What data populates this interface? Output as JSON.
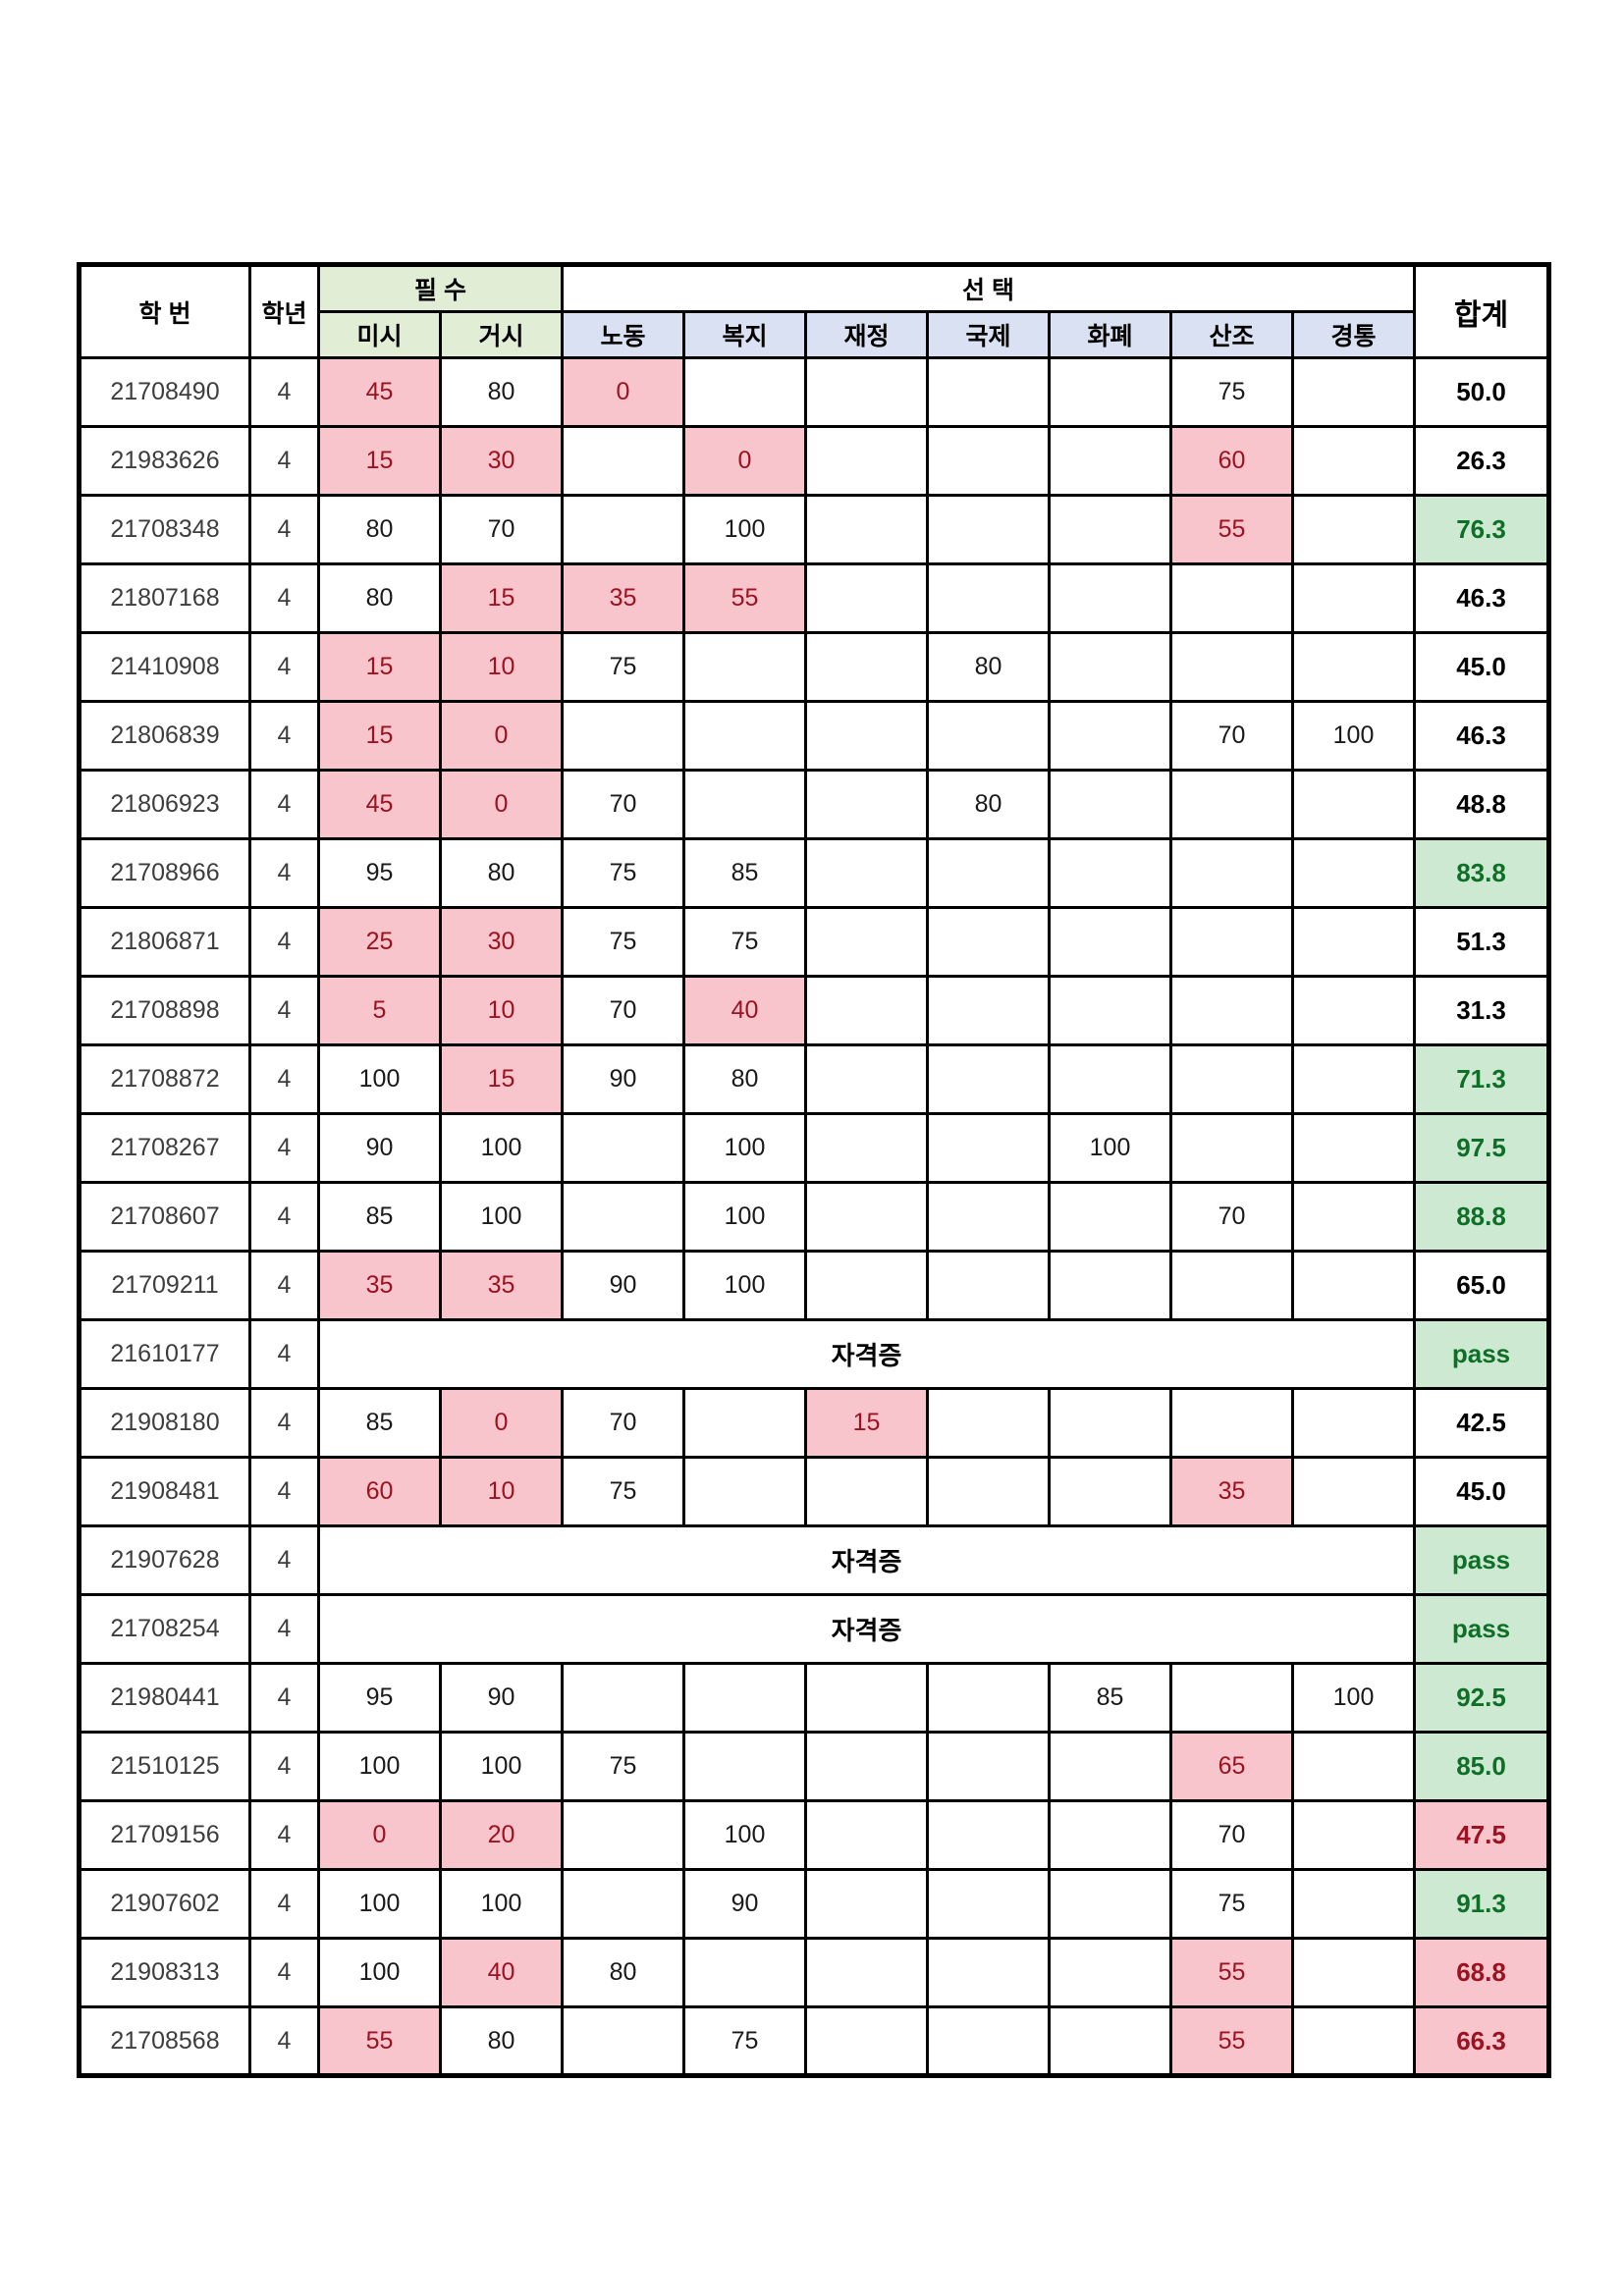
{
  "table": {
    "header": {
      "student_id": "학  번",
      "year": "학년",
      "required_group": "필  수",
      "elective_group": "선  택",
      "total": "합계",
      "required_cols": [
        "미시",
        "거시"
      ],
      "elective_cols": [
        "노동",
        "복지",
        "재정",
        "국제",
        "화폐",
        "산조",
        "경통"
      ]
    },
    "colors": {
      "required_header_bg": "#e2edd5",
      "elective_sub_bg": "#d9e1f2",
      "fail_bg": "#f8c5cc",
      "fail_text": "#9c1220",
      "good_bg": "#cde9d2",
      "good_text": "#0e6f27",
      "border": "#000000"
    },
    "merged_label": "자격증",
    "score_col_keys": [
      "misi",
      "geosi",
      "nodong",
      "bokji",
      "jaejeong",
      "gukje",
      "hwapye",
      "sanjo",
      "gyeongtong"
    ],
    "rows": [
      {
        "id": "21708490",
        "year": "4",
        "scores": [
          [
            "45",
            "p"
          ],
          [
            "80",
            ""
          ],
          [
            "0",
            "p"
          ],
          [
            "",
            ""
          ],
          [
            "",
            ""
          ],
          [
            "",
            ""
          ],
          [
            "",
            ""
          ],
          [
            "75",
            ""
          ],
          [
            "",
            ""
          ]
        ],
        "total": [
          "50.0",
          "plain"
        ]
      },
      {
        "id": "21983626",
        "year": "4",
        "scores": [
          [
            "15",
            "p"
          ],
          [
            "30",
            "p"
          ],
          [
            "",
            ""
          ],
          [
            "0",
            "p"
          ],
          [
            "",
            ""
          ],
          [
            "",
            ""
          ],
          [
            "",
            ""
          ],
          [
            "60",
            "p"
          ],
          [
            "",
            ""
          ]
        ],
        "total": [
          "26.3",
          "plain"
        ]
      },
      {
        "id": "21708348",
        "year": "4",
        "scores": [
          [
            "80",
            ""
          ],
          [
            "70",
            ""
          ],
          [
            "",
            ""
          ],
          [
            "100",
            ""
          ],
          [
            "",
            ""
          ],
          [
            "",
            ""
          ],
          [
            "",
            ""
          ],
          [
            "55",
            "p"
          ],
          [
            "",
            ""
          ]
        ],
        "total": [
          "76.3",
          "good"
        ]
      },
      {
        "id": "21807168",
        "year": "4",
        "scores": [
          [
            "80",
            ""
          ],
          [
            "15",
            "p"
          ],
          [
            "35",
            "p"
          ],
          [
            "55",
            "p"
          ],
          [
            "",
            ""
          ],
          [
            "",
            ""
          ],
          [
            "",
            ""
          ],
          [
            "",
            ""
          ],
          [
            "",
            ""
          ]
        ],
        "total": [
          "46.3",
          "plain"
        ]
      },
      {
        "id": "21410908",
        "year": "4",
        "scores": [
          [
            "15",
            "p"
          ],
          [
            "10",
            "p"
          ],
          [
            "75",
            ""
          ],
          [
            "",
            ""
          ],
          [
            "",
            ""
          ],
          [
            "80",
            ""
          ],
          [
            "",
            ""
          ],
          [
            "",
            ""
          ],
          [
            "",
            ""
          ]
        ],
        "total": [
          "45.0",
          "plain"
        ]
      },
      {
        "id": "21806839",
        "year": "4",
        "scores": [
          [
            "15",
            "p"
          ],
          [
            "0",
            "p"
          ],
          [
            "",
            ""
          ],
          [
            "",
            ""
          ],
          [
            "",
            ""
          ],
          [
            "",
            ""
          ],
          [
            "",
            ""
          ],
          [
            "70",
            ""
          ],
          [
            "100",
            ""
          ]
        ],
        "total": [
          "46.3",
          "plain"
        ]
      },
      {
        "id": "21806923",
        "year": "4",
        "scores": [
          [
            "45",
            "p"
          ],
          [
            "0",
            "p"
          ],
          [
            "70",
            ""
          ],
          [
            "",
            ""
          ],
          [
            "",
            ""
          ],
          [
            "80",
            ""
          ],
          [
            "",
            ""
          ],
          [
            "",
            ""
          ],
          [
            "",
            ""
          ]
        ],
        "total": [
          "48.8",
          "plain"
        ]
      },
      {
        "id": "21708966",
        "year": "4",
        "scores": [
          [
            "95",
            ""
          ],
          [
            "80",
            ""
          ],
          [
            "75",
            ""
          ],
          [
            "85",
            ""
          ],
          [
            "",
            ""
          ],
          [
            "",
            ""
          ],
          [
            "",
            ""
          ],
          [
            "",
            ""
          ],
          [
            "",
            ""
          ]
        ],
        "total": [
          "83.8",
          "good"
        ]
      },
      {
        "id": "21806871",
        "year": "4",
        "scores": [
          [
            "25",
            "p"
          ],
          [
            "30",
            "p"
          ],
          [
            "75",
            ""
          ],
          [
            "75",
            ""
          ],
          [
            "",
            ""
          ],
          [
            "",
            ""
          ],
          [
            "",
            ""
          ],
          [
            "",
            ""
          ],
          [
            "",
            ""
          ]
        ],
        "total": [
          "51.3",
          "plain"
        ]
      },
      {
        "id": "21708898",
        "year": "4",
        "scores": [
          [
            "5",
            "p"
          ],
          [
            "10",
            "p"
          ],
          [
            "70",
            ""
          ],
          [
            "40",
            "p"
          ],
          [
            "",
            ""
          ],
          [
            "",
            ""
          ],
          [
            "",
            ""
          ],
          [
            "",
            ""
          ],
          [
            "",
            ""
          ]
        ],
        "total": [
          "31.3",
          "plain"
        ]
      },
      {
        "id": "21708872",
        "year": "4",
        "scores": [
          [
            "100",
            ""
          ],
          [
            "15",
            "p"
          ],
          [
            "90",
            ""
          ],
          [
            "80",
            ""
          ],
          [
            "",
            ""
          ],
          [
            "",
            ""
          ],
          [
            "",
            ""
          ],
          [
            "",
            ""
          ],
          [
            "",
            ""
          ]
        ],
        "total": [
          "71.3",
          "good"
        ]
      },
      {
        "id": "21708267",
        "year": "4",
        "scores": [
          [
            "90",
            ""
          ],
          [
            "100",
            ""
          ],
          [
            "",
            ""
          ],
          [
            "100",
            ""
          ],
          [
            "",
            ""
          ],
          [
            "",
            ""
          ],
          [
            "100",
            ""
          ],
          [
            "",
            ""
          ],
          [
            "",
            ""
          ]
        ],
        "total": [
          "97.5",
          "good"
        ]
      },
      {
        "id": "21708607",
        "year": "4",
        "scores": [
          [
            "85",
            ""
          ],
          [
            "100",
            ""
          ],
          [
            "",
            ""
          ],
          [
            "100",
            ""
          ],
          [
            "",
            ""
          ],
          [
            "",
            ""
          ],
          [
            "",
            ""
          ],
          [
            "70",
            ""
          ],
          [
            "",
            ""
          ]
        ],
        "total": [
          "88.8",
          "good"
        ]
      },
      {
        "id": "21709211",
        "year": "4",
        "scores": [
          [
            "35",
            "p"
          ],
          [
            "35",
            "p"
          ],
          [
            "90",
            ""
          ],
          [
            "100",
            ""
          ],
          [
            "",
            ""
          ],
          [
            "",
            ""
          ],
          [
            "",
            ""
          ],
          [
            "",
            ""
          ],
          [
            "",
            ""
          ]
        ],
        "total": [
          "65.0",
          "plain"
        ]
      },
      {
        "id": "21610177",
        "year": "4",
        "merged": true,
        "total": [
          "pass",
          "good"
        ]
      },
      {
        "id": "21908180",
        "year": "4",
        "scores": [
          [
            "85",
            ""
          ],
          [
            "0",
            "p"
          ],
          [
            "70",
            ""
          ],
          [
            "",
            ""
          ],
          [
            "15",
            "p"
          ],
          [
            "",
            ""
          ],
          [
            "",
            ""
          ],
          [
            "",
            ""
          ],
          [
            "",
            ""
          ]
        ],
        "total": [
          "42.5",
          "plain"
        ]
      },
      {
        "id": "21908481",
        "year": "4",
        "scores": [
          [
            "60",
            "p"
          ],
          [
            "10",
            "p"
          ],
          [
            "75",
            ""
          ],
          [
            "",
            ""
          ],
          [
            "",
            ""
          ],
          [
            "",
            ""
          ],
          [
            "",
            ""
          ],
          [
            "35",
            "p"
          ],
          [
            "",
            ""
          ]
        ],
        "total": [
          "45.0",
          "plain"
        ]
      },
      {
        "id": "21907628",
        "year": "4",
        "merged": true,
        "total": [
          "pass",
          "good"
        ]
      },
      {
        "id": "21708254",
        "year": "4",
        "merged": true,
        "total": [
          "pass",
          "good"
        ]
      },
      {
        "id": "21980441",
        "year": "4",
        "scores": [
          [
            "95",
            ""
          ],
          [
            "90",
            ""
          ],
          [
            "",
            ""
          ],
          [
            "",
            ""
          ],
          [
            "",
            ""
          ],
          [
            "",
            ""
          ],
          [
            "85",
            ""
          ],
          [
            "",
            ""
          ],
          [
            "100",
            ""
          ]
        ],
        "total": [
          "92.5",
          "good"
        ]
      },
      {
        "id": "21510125",
        "year": "4",
        "scores": [
          [
            "100",
            ""
          ],
          [
            "100",
            ""
          ],
          [
            "75",
            ""
          ],
          [
            "",
            ""
          ],
          [
            "",
            ""
          ],
          [
            "",
            ""
          ],
          [
            "",
            ""
          ],
          [
            "65",
            "p"
          ],
          [
            "",
            ""
          ]
        ],
        "total": [
          "85.0",
          "good"
        ]
      },
      {
        "id": "21709156",
        "year": "4",
        "scores": [
          [
            "0",
            "p"
          ],
          [
            "20",
            "p"
          ],
          [
            "",
            ""
          ],
          [
            "100",
            ""
          ],
          [
            "",
            ""
          ],
          [
            "",
            ""
          ],
          [
            "",
            ""
          ],
          [
            "70",
            ""
          ],
          [
            "",
            ""
          ]
        ],
        "total": [
          "47.5",
          "bad"
        ]
      },
      {
        "id": "21907602",
        "year": "4",
        "scores": [
          [
            "100",
            ""
          ],
          [
            "100",
            ""
          ],
          [
            "",
            ""
          ],
          [
            "90",
            ""
          ],
          [
            "",
            ""
          ],
          [
            "",
            ""
          ],
          [
            "",
            ""
          ],
          [
            "75",
            ""
          ],
          [
            "",
            ""
          ]
        ],
        "total": [
          "91.3",
          "good"
        ]
      },
      {
        "id": "21908313",
        "year": "4",
        "scores": [
          [
            "100",
            ""
          ],
          [
            "40",
            "p"
          ],
          [
            "80",
            ""
          ],
          [
            "",
            ""
          ],
          [
            "",
            ""
          ],
          [
            "",
            ""
          ],
          [
            "",
            ""
          ],
          [
            "55",
            "p"
          ],
          [
            "",
            ""
          ]
        ],
        "total": [
          "68.8",
          "bad"
        ]
      },
      {
        "id": "21708568",
        "year": "4",
        "scores": [
          [
            "55",
            "p"
          ],
          [
            "80",
            ""
          ],
          [
            "",
            ""
          ],
          [
            "75",
            ""
          ],
          [
            "",
            ""
          ],
          [
            "",
            ""
          ],
          [
            "",
            ""
          ],
          [
            "55",
            "p"
          ],
          [
            "",
            ""
          ]
        ],
        "total": [
          "66.3",
          "bad"
        ]
      }
    ]
  }
}
